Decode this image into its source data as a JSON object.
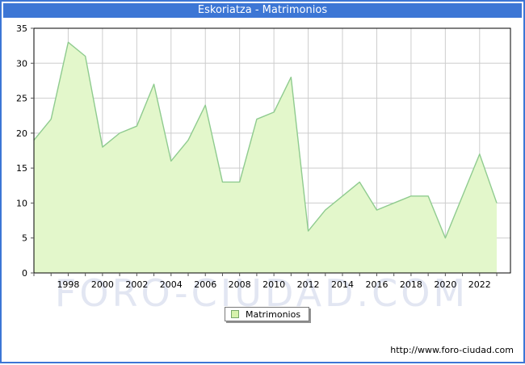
{
  "title_bar": {
    "title": "Eskoriatza - Matrimonios"
  },
  "chart_data": {
    "type": "area",
    "title": "Eskoriatza - Matrimonios",
    "xlabel": "",
    "ylabel": "",
    "x": [
      1996,
      1997,
      1998,
      1999,
      2000,
      2001,
      2002,
      2003,
      2004,
      2005,
      2006,
      2007,
      2008,
      2009,
      2010,
      2011,
      2012,
      2013,
      2014,
      2015,
      2016,
      2017,
      2018,
      2019,
      2020,
      2021,
      2022,
      2023
    ],
    "series": [
      {
        "name": "Matrimonios",
        "values": [
          19,
          22,
          33,
          31,
          18,
          20,
          21,
          27,
          16,
          19,
          24,
          13,
          13,
          22,
          23,
          28,
          6,
          9,
          11,
          13,
          9,
          10,
          11,
          11,
          5,
          11,
          17,
          10
        ]
      }
    ],
    "xlim": [
      1996,
      2023.8
    ],
    "ylim": [
      0,
      35
    ],
    "y_ticks": [
      0,
      5,
      10,
      15,
      20,
      25,
      30,
      35
    ],
    "x_tick_labels": [
      1998,
      2000,
      2002,
      2004,
      2006,
      2008,
      2010,
      2012,
      2014,
      2016,
      2018,
      2020,
      2022
    ],
    "grid": true,
    "legend_position": "bottom-center"
  },
  "legend": {
    "items": [
      {
        "label": "Matrimonios",
        "swatch_fill": "#D6F2AC",
        "swatch_border": "#76A768"
      }
    ]
  },
  "watermark": {
    "text": "FORO-CIUDAD.COM"
  },
  "footer": {
    "url": "http://www.foro-ciudad.com"
  },
  "colors": {
    "accent_blue": "#3C76D5",
    "area_fill": "#E3F7CB",
    "area_line": "#8FCB8F",
    "grid": "#CDCDCD",
    "plot_border": "#000000",
    "axis_text": "#000000",
    "watermark": "#DCE0F0"
  }
}
